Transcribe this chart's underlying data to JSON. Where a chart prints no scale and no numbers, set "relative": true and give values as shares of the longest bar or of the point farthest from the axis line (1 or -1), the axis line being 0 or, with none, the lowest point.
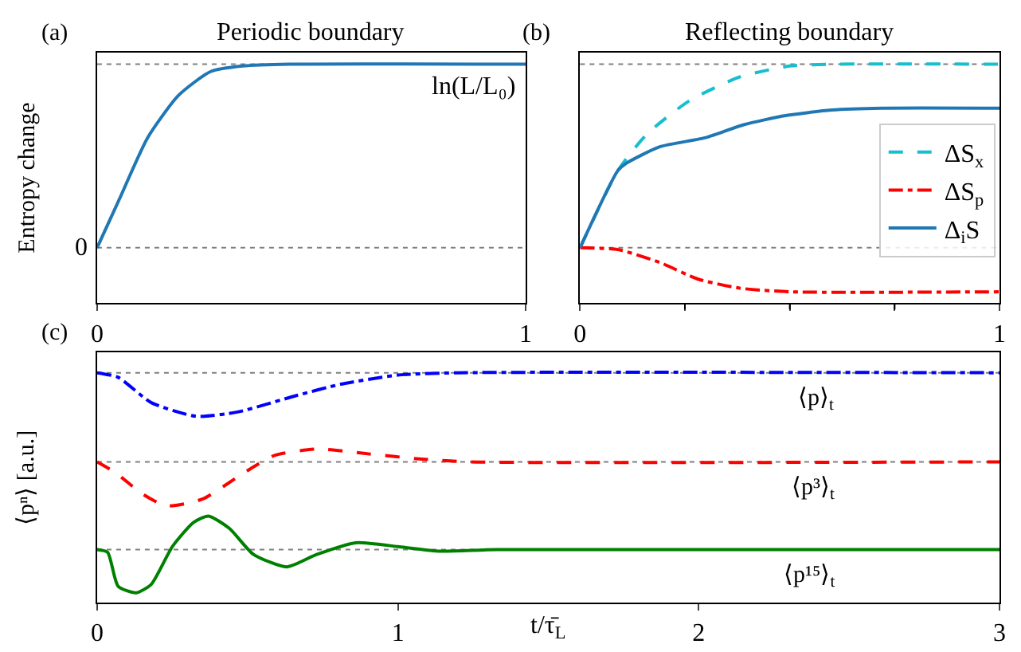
{
  "chart_data": [
    {
      "type": "line",
      "title": "Periodic boundary",
      "ylabel": "Entropy change",
      "relative": true,
      "grid": false,
      "legend": false,
      "xlim": [
        0,
        1
      ],
      "xticks": [
        0,
        1
      ],
      "annotations": [
        "(a)"
      ],
      "ref_lines": [
        {
          "axis": "y",
          "value": 0,
          "label": "0",
          "color": "#808080",
          "line_style": "dotted"
        },
        {
          "axis": "y",
          "value": 1,
          "label": "ln(L/L₀)",
          "color": "#808080",
          "line_style": "dotted"
        }
      ],
      "series": [
        {
          "color": "#1f77b4",
          "line_style": "solid",
          "x": [
            0,
            0.051,
            0.118,
            0.19,
            0.265,
            0.34,
            0.45,
            1
          ],
          "values": [
            0,
            0.26,
            0.6,
            0.83,
            0.96,
            0.99,
            1,
            1
          ]
        }
      ]
    },
    {
      "type": "line",
      "title": "Reflecting boundary",
      "relative": true,
      "grid": false,
      "legend": "right",
      "xlim": [
        0,
        1
      ],
      "xticks": [
        0,
        {
          "value": 0.25,
          "label": null
        },
        {
          "value": 0.5,
          "label": null
        },
        {
          "value": 0.75,
          "label": null
        },
        1
      ],
      "annotations": [
        "(b)"
      ],
      "ref_lines": [
        {
          "axis": "y",
          "value": 0,
          "color": "#808080",
          "line_style": "dotted"
        },
        {
          "axis": "y",
          "value": 1,
          "color": "#808080",
          "line_style": "dotted"
        }
      ],
      "series": [
        {
          "name": "ΔS$_{x}$",
          "color": "#17becf",
          "line_style": "dashed",
          "x": [
            0,
            0.09,
            0.16,
            0.26,
            0.38,
            0.5,
            0.6,
            1
          ],
          "values": [
            0,
            0.42,
            0.62,
            0.8,
            0.93,
            0.99,
            1,
            1
          ]
        },
        {
          "name": "ΔS$_{p}$",
          "color": "#ff0000",
          "line_style": "dashdot",
          "x": [
            0,
            0.09,
            0.19,
            0.28,
            0.38,
            0.5,
            1
          ],
          "values": [
            0,
            -0.01,
            -0.08,
            -0.17,
            -0.22,
            -0.24,
            -0.24
          ]
        },
        {
          "name": "Δ$_{i}$S",
          "color": "#1f77b4",
          "line_style": "solid",
          "x": [
            0,
            0.09,
            0.11,
            0.19,
            0.3,
            0.39,
            0.49,
            0.6,
            0.72,
            1
          ],
          "values": [
            0,
            0.42,
            0.46,
            0.55,
            0.6,
            0.67,
            0.72,
            0.75,
            0.76,
            0.76
          ]
        }
      ]
    },
    {
      "type": "line",
      "xlabel": "t/τ̄$_{L}$",
      "ylabel": "⟨pⁿ⟩ [a.u.]",
      "relative": true,
      "grid": false,
      "legend": false,
      "xlim": [
        0,
        3
      ],
      "xticks": [
        0,
        1,
        2,
        3
      ],
      "annotations": [
        "(c)",
        "⟨p⟩$_{t}$",
        "⟨p³⟩$_{t}$",
        "⟨p¹⁵⟩$_{t}$"
      ],
      "ref_lines": [
        {
          "axis": "y",
          "value": 1,
          "color": "#808080",
          "line_style": "dotted"
        },
        {
          "axis": "y",
          "value": 0.612,
          "color": "#808080",
          "line_style": "dotted"
        },
        {
          "axis": "y",
          "value": 0.23,
          "color": "#808080",
          "line_style": "dotted"
        }
      ],
      "series": [
        {
          "color": "#0000ff",
          "line_style": "dashdot",
          "x": [
            0,
            0.07,
            0.18,
            0.33,
            0.47,
            0.66,
            0.81,
            1.0,
            1.2,
            3
          ],
          "values": [
            1,
            0.98,
            0.87,
            0.81,
            0.83,
            0.9,
            0.95,
            0.99,
            1,
            1
          ]
        },
        {
          "color": "#ff0000",
          "line_style": "dashed",
          "x": [
            0,
            0.06,
            0.15,
            0.23,
            0.35,
            0.49,
            0.59,
            0.73,
            0.9,
            1.08,
            1.24,
            3
          ],
          "values": [
            0.612,
            0.566,
            0.473,
            0.42,
            0.45,
            0.566,
            0.64,
            0.668,
            0.647,
            0.624,
            0.612,
            0.612
          ]
        },
        {
          "color": "#008000",
          "line_style": "solid",
          "x": [
            0,
            0.035,
            0.07,
            0.13,
            0.18,
            0.25,
            0.32,
            0.37,
            0.44,
            0.52,
            0.63,
            0.73,
            0.86,
            1.0,
            1.14,
            1.33,
            3
          ],
          "values": [
            0.23,
            0.218,
            0.07,
            0.042,
            0.079,
            0.243,
            0.348,
            0.376,
            0.322,
            0.209,
            0.155,
            0.209,
            0.26,
            0.243,
            0.223,
            0.23,
            0.23
          ]
        }
      ]
    }
  ]
}
